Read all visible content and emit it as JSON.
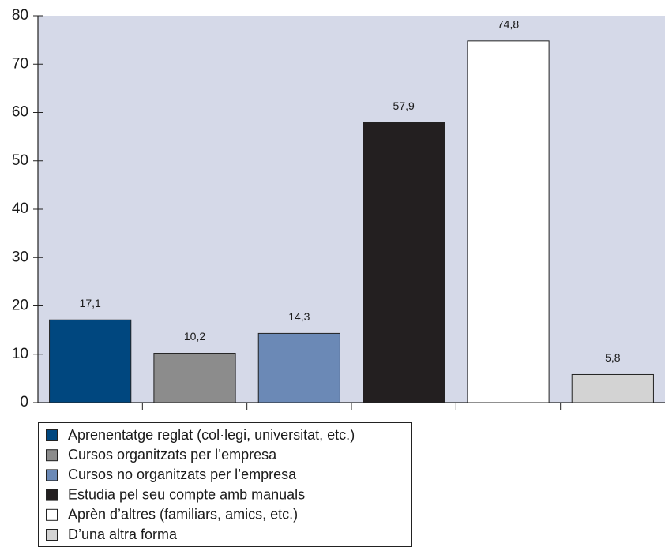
{
  "chart_data": {
    "type": "bar",
    "categories": [
      "Aprenentatge reglat (col·legi, universitat, etc.)",
      "Cursos organitzats per l’empresa",
      "Cursos no organitzats per l’empresa",
      "Estudia pel seu compte amb manuals",
      "Aprèn d’altres (familiars, amics, etc.)",
      "D’una altra forma"
    ],
    "values": [
      17.1,
      10.2,
      14.3,
      57.9,
      74.8,
      5.8
    ],
    "value_labels": [
      "17,1",
      "10,2",
      "14,3",
      "57,9",
      "74,8",
      "5,8"
    ],
    "colors": [
      "#00477f",
      "#8c8c8c",
      "#6b89b6",
      "#231f20",
      "#ffffff",
      "#d3d3d3"
    ],
    "ylim": [
      0,
      80
    ],
    "yticks": [
      0,
      10,
      20,
      30,
      40,
      50,
      60,
      70,
      80
    ],
    "grid": false
  }
}
